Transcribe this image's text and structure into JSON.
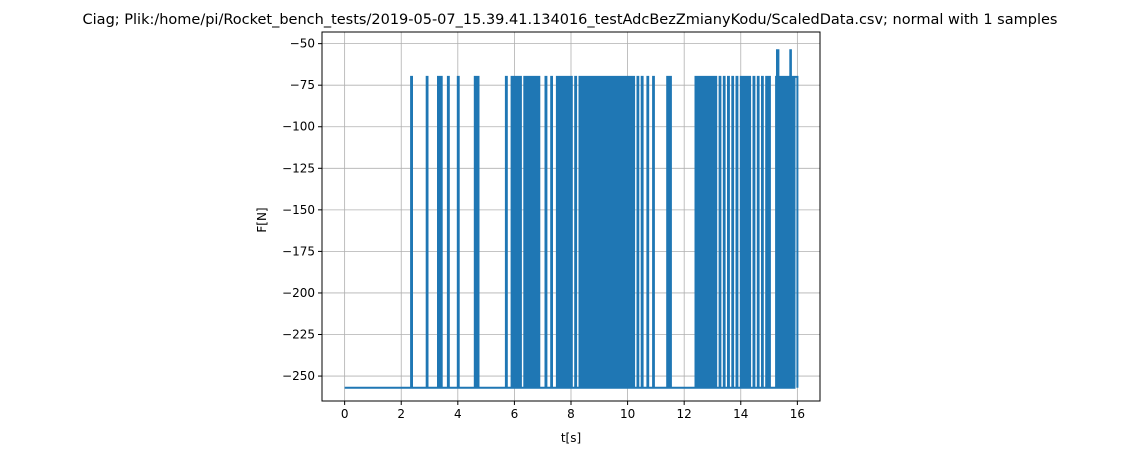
{
  "chart_data": {
    "type": "line",
    "title": "Ciag; Plik:/home/pi/Rocket_bench_tests/2019-05-07_15.39.41.134016_testAdcBezZmianyKodu/ScaledData.csv; normal with 1 samples",
    "xlabel": "t[s]",
    "ylabel": "F[N]",
    "xlim": [
      -0.8,
      16.8
    ],
    "ylim": [
      -265,
      -43
    ],
    "xticks": [
      0,
      2,
      4,
      6,
      8,
      10,
      12,
      14,
      16
    ],
    "xtick_labels": [
      "0",
      "2",
      "4",
      "6",
      "8",
      "10",
      "12",
      "14",
      "16"
    ],
    "yticks": [
      -250,
      -225,
      -200,
      -175,
      -150,
      -125,
      -100,
      -75,
      -50
    ],
    "ytick_labels": [
      "−250",
      "−225",
      "−200",
      "−175",
      "−150",
      "−125",
      "−100",
      "−75",
      "−50"
    ],
    "grid": true,
    "line_color": "#1f77b4",
    "series": [
      {
        "low": -257,
        "high": -70,
        "peak": -54,
        "x_start": 0,
        "x_end": 16,
        "pulses": [
          [
            2.35,
            2.38
          ],
          [
            2.9,
            2.93
          ],
          [
            3.3,
            3.33
          ],
          [
            3.4,
            3.43
          ],
          [
            3.65,
            3.68
          ],
          [
            4.0,
            4.03
          ],
          [
            4.6,
            4.63
          ],
          [
            4.7,
            4.73
          ],
          [
            5.7,
            5.73
          ],
          [
            5.9,
            5.93
          ],
          [
            6.0,
            6.03
          ],
          [
            6.1,
            6.13
          ],
          [
            6.2,
            6.23
          ],
          [
            6.35,
            6.38
          ],
          [
            6.45,
            6.48
          ],
          [
            6.55,
            6.58
          ],
          [
            6.65,
            6.68
          ],
          [
            6.75,
            6.78
          ],
          [
            6.85,
            6.88
          ],
          [
            7.1,
            7.13
          ],
          [
            7.3,
            7.33
          ],
          [
            7.5,
            7.53
          ],
          [
            7.6,
            7.63
          ],
          [
            7.7,
            7.73
          ],
          [
            7.8,
            7.83
          ],
          [
            7.9,
            7.93
          ],
          [
            8.0,
            8.03
          ],
          [
            8.15,
            8.18
          ],
          [
            8.3,
            8.33
          ],
          [
            8.4,
            8.43
          ],
          [
            8.5,
            8.53
          ],
          [
            8.6,
            8.63
          ],
          [
            8.7,
            8.73
          ],
          [
            8.8,
            8.83
          ],
          [
            8.9,
            8.93
          ],
          [
            9.0,
            9.03
          ],
          [
            9.1,
            9.13
          ],
          [
            9.2,
            9.23
          ],
          [
            9.3,
            9.33
          ],
          [
            9.4,
            9.43
          ],
          [
            9.5,
            9.53
          ],
          [
            9.6,
            9.63
          ],
          [
            9.7,
            9.73
          ],
          [
            9.8,
            9.83
          ],
          [
            9.9,
            9.93
          ],
          [
            10.0,
            10.03
          ],
          [
            10.1,
            10.13
          ],
          [
            10.2,
            10.23
          ],
          [
            10.35,
            10.38
          ],
          [
            10.5,
            10.53
          ],
          [
            10.7,
            10.73
          ],
          [
            10.9,
            10.93
          ],
          [
            11.4,
            11.43
          ],
          [
            11.5,
            11.53
          ],
          [
            12.4,
            12.43
          ],
          [
            12.5,
            12.53
          ],
          [
            12.6,
            12.63
          ],
          [
            12.7,
            12.73
          ],
          [
            12.8,
            12.83
          ],
          [
            12.9,
            12.93
          ],
          [
            13.0,
            13.03
          ],
          [
            13.1,
            13.13
          ],
          [
            13.25,
            13.28
          ],
          [
            13.4,
            13.43
          ],
          [
            13.55,
            13.58
          ],
          [
            13.7,
            13.73
          ],
          [
            13.85,
            13.88
          ],
          [
            14.0,
            14.03
          ],
          [
            14.1,
            14.13
          ],
          [
            14.2,
            14.23
          ],
          [
            14.3,
            14.33
          ],
          [
            14.45,
            14.48
          ],
          [
            14.6,
            14.63
          ],
          [
            14.75,
            14.78
          ],
          [
            14.9,
            14.93
          ],
          [
            15.0,
            15.03
          ],
          [
            15.25,
            15.28
          ],
          [
            15.35,
            15.38
          ],
          [
            15.45,
            15.48
          ],
          [
            15.55,
            15.58
          ],
          [
            15.65,
            15.68
          ],
          [
            15.75,
            15.78
          ],
          [
            15.85,
            15.88
          ],
          [
            15.9,
            16.0
          ]
        ],
        "peak_pulses": [
          [
            15.28,
            15.33
          ],
          [
            15.75,
            15.77
          ]
        ]
      }
    ]
  }
}
